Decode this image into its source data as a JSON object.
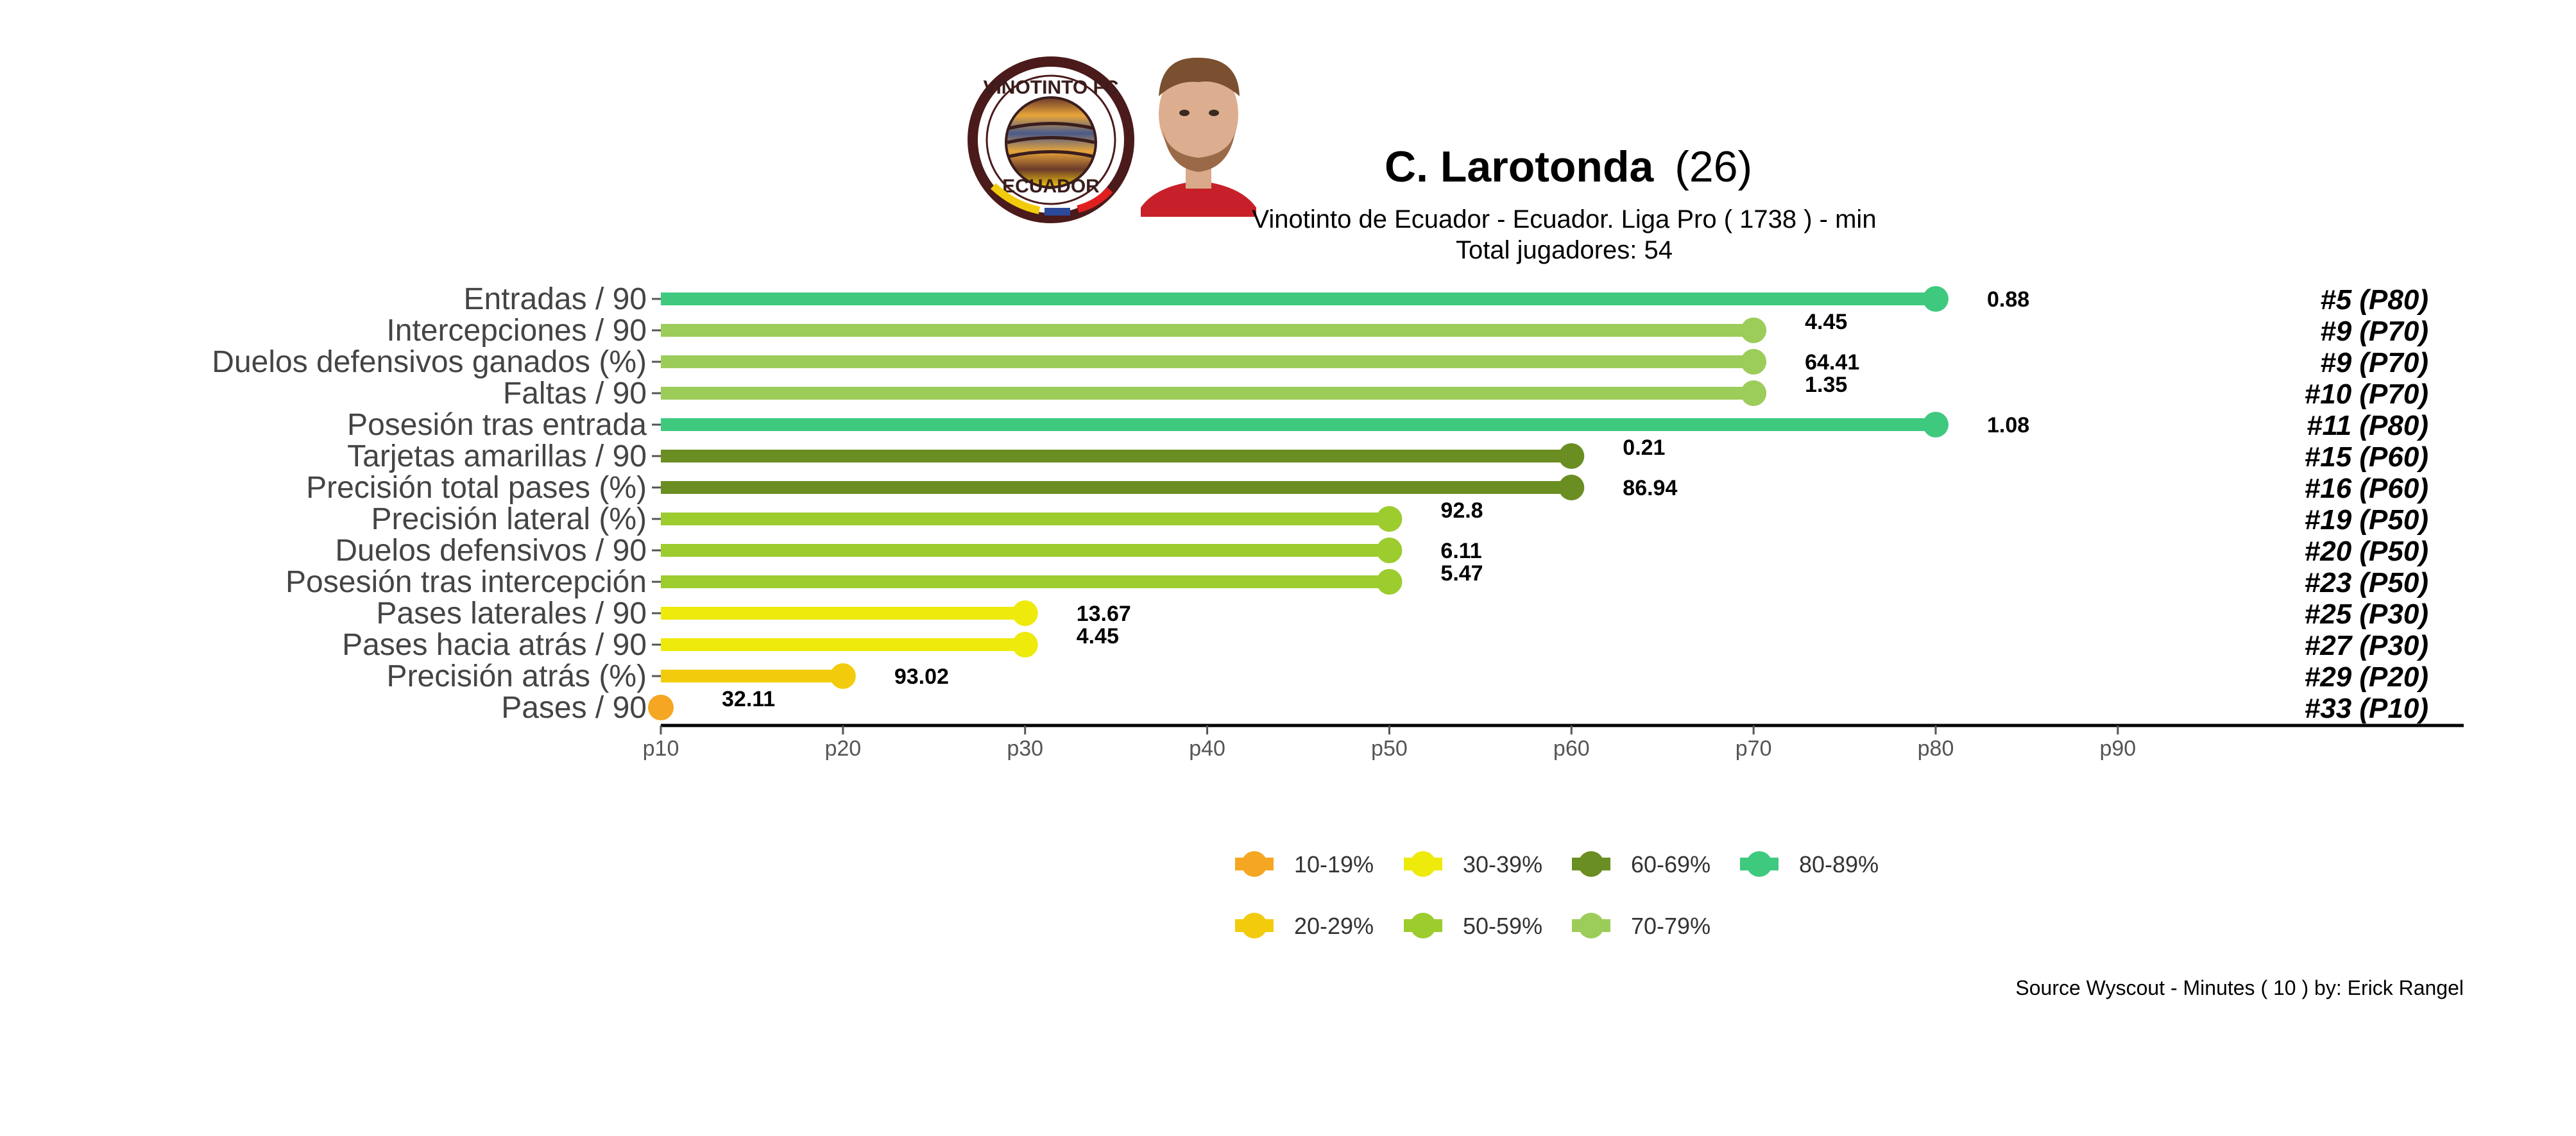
{
  "header": {
    "player_name": "C. Larotonda",
    "player_age": "(26)",
    "subtitle": "Vinotinto de Ecuador  -  Ecuador. Liga Pro  ( 1738 ) - min",
    "total_label": "Total jugadores:  54"
  },
  "logo": {
    "top_text": "VINOTINTO FC",
    "bottom_text": "ECUADOR"
  },
  "source": "Source Wyscout - Minutes ( 10 ) by: Erick Rangel",
  "colors": {
    "10-19%": "#f5a623",
    "20-29%": "#f2cc0c",
    "30-39%": "#eeea0b",
    "50-59%": "#9ccc2e",
    "60-69%": "#6b8e23",
    "70-79%": "#9ccc5a",
    "80-89%": "#3fc97f"
  },
  "chart_data": {
    "type": "lollipop",
    "categories": [
      "Entradas / 90",
      "Intercepciones / 90",
      "Duelos defensivos ganados (%)",
      "Faltas / 90",
      "Posesión tras entrada",
      "Tarjetas amarillas / 90",
      "Precisión total pases (%)",
      "Precisión lateral (%)",
      "Duelos defensivos / 90",
      "Posesión tras intercepción",
      "Pases laterales / 90",
      "Pases hacia atrás / 90",
      "Precisión atrás (%)",
      "Pases / 90"
    ],
    "percentiles": [
      80,
      70,
      70,
      70,
      80,
      60,
      60,
      50,
      50,
      50,
      30,
      30,
      20,
      10
    ],
    "values": [
      "0.88",
      "4.45",
      "64.41",
      "1.35",
      "1.08",
      "0.21",
      "86.94",
      "92.8",
      "6.11",
      "5.47",
      "13.67",
      "4.45",
      "93.02",
      "32.11"
    ],
    "ranks": [
      "#5 (P80)",
      "#9 (P70)",
      "#9 (P70)",
      "#10 (P70)",
      "#11 (P80)",
      "#15 (P60)",
      "#16 (P60)",
      "#19 (P50)",
      "#20 (P50)",
      "#23 (P50)",
      "#25 (P30)",
      "#27 (P30)",
      "#29 (P20)",
      "#33 (P10)"
    ],
    "color_groups": [
      "80-89%",
      "70-79%",
      "70-79%",
      "70-79%",
      "80-89%",
      "60-69%",
      "60-69%",
      "50-59%",
      "50-59%",
      "50-59%",
      "30-39%",
      "30-39%",
      "20-29%",
      "10-19%"
    ],
    "x_ticks": [
      10,
      20,
      30,
      40,
      50,
      60,
      70,
      80,
      90
    ],
    "x_tick_labels": [
      "p10",
      "p20",
      "p30",
      "p40",
      "p50",
      "p60",
      "p70",
      "p80",
      "p90"
    ],
    "xlim": [
      10,
      100
    ],
    "legend": [
      "10-19%",
      "30-39%",
      "60-69%",
      "80-89%",
      "20-29%",
      "50-59%",
      "70-79%"
    ],
    "legend_position": "bottom"
  }
}
